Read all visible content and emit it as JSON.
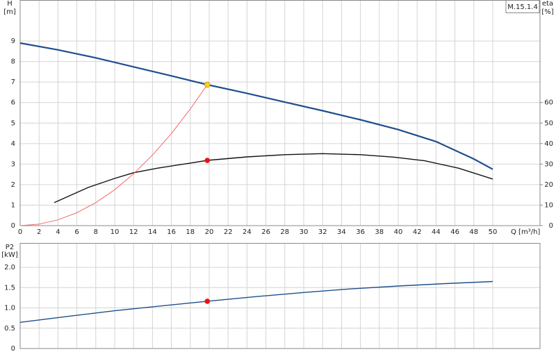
{
  "chart_data": [
    {
      "type": "line",
      "model": "M.15.1.4",
      "ylabel": "H",
      "ylabel_unit": "[m]",
      "y2label": "eta",
      "y2label_unit": "[%]",
      "xlabel": "Q [m³/h]",
      "xlim": [
        0,
        55
      ],
      "xticks": [
        0,
        2,
        4,
        6,
        8,
        10,
        12,
        14,
        16,
        18,
        20,
        22,
        24,
        26,
        28,
        30,
        32,
        34,
        36,
        38,
        40,
        42,
        44,
        46,
        48,
        50
      ],
      "ylim": [
        0,
        11
      ],
      "yticks": [
        0,
        1,
        2,
        3,
        4,
        5,
        6,
        7,
        8,
        9
      ],
      "y2lim": [
        0,
        110
      ],
      "y2ticks": [
        0,
        10,
        20,
        30,
        40,
        50,
        60
      ],
      "grid": true,
      "series": [
        {
          "name": "H",
          "color": "#1f4e8c",
          "width": 2.2,
          "x": [
            0,
            4,
            8,
            12,
            16,
            19.8,
            24,
            28,
            32,
            36,
            40,
            44,
            48,
            50
          ],
          "values": [
            8.9,
            8.57,
            8.18,
            7.74,
            7.3,
            6.87,
            6.45,
            6.02,
            5.6,
            5.16,
            4.68,
            4.1,
            3.25,
            2.75
          ]
        },
        {
          "name": "eta",
          "color": "#111111",
          "width": 1.4,
          "axis": "y2",
          "x": [
            3.6,
            7.2,
            10,
            12,
            14.5,
            18,
            19.8,
            24,
            28,
            32,
            36,
            39.5,
            42.8,
            46.4,
            50
          ],
          "values": [
            11.2,
            18.6,
            23,
            25.8,
            28,
            30.5,
            31.8,
            33.5,
            34.6,
            35.1,
            34.6,
            33.4,
            31.6,
            28,
            22.7
          ]
        },
        {
          "name": "system",
          "color": "#f26b6b",
          "width": 1,
          "x": [
            0,
            2,
            4,
            6,
            8,
            10,
            12,
            14,
            16,
            18,
            19.8
          ],
          "values": [
            0,
            0.07,
            0.28,
            0.63,
            1.12,
            1.75,
            2.53,
            3.44,
            4.49,
            5.69,
            6.87
          ]
        }
      ],
      "markers": [
        {
          "x": 19.8,
          "y": 6.87,
          "color": "#ffd21f"
        },
        {
          "x": 19.8,
          "y": 31.8,
          "color": "#ee1111",
          "axis": "y2"
        }
      ]
    },
    {
      "type": "line",
      "ylabel": "P2",
      "ylabel_unit": "[kW]",
      "xlim": [
        0,
        55
      ],
      "xticks": [
        0,
        2,
        4,
        6,
        8,
        10,
        12,
        14,
        16,
        18,
        20,
        22,
        24,
        26,
        28,
        30,
        32,
        34,
        36,
        38,
        40,
        42,
        44,
        46,
        48,
        50
      ],
      "ylim": [
        0,
        2.6
      ],
      "yticks": [
        0,
        0.5,
        {
          "value": 1,
          "label": "1.0"
        },
        1.5,
        {
          "value": 2,
          "label": "2.0"
        }
      ],
      "grid": true,
      "series": [
        {
          "name": "P2",
          "color": "#1f4e8c",
          "width": 1.4,
          "x": [
            0,
            5,
            10,
            15,
            19.8,
            25,
            30,
            35,
            40,
            45,
            50
          ],
          "values": [
            0.645,
            0.79,
            0.93,
            1.05,
            1.165,
            1.28,
            1.38,
            1.47,
            1.54,
            1.6,
            1.65
          ]
        }
      ],
      "markers": [
        {
          "x": 19.8,
          "y": 1.165,
          "color": "#ee1111"
        }
      ]
    }
  ]
}
